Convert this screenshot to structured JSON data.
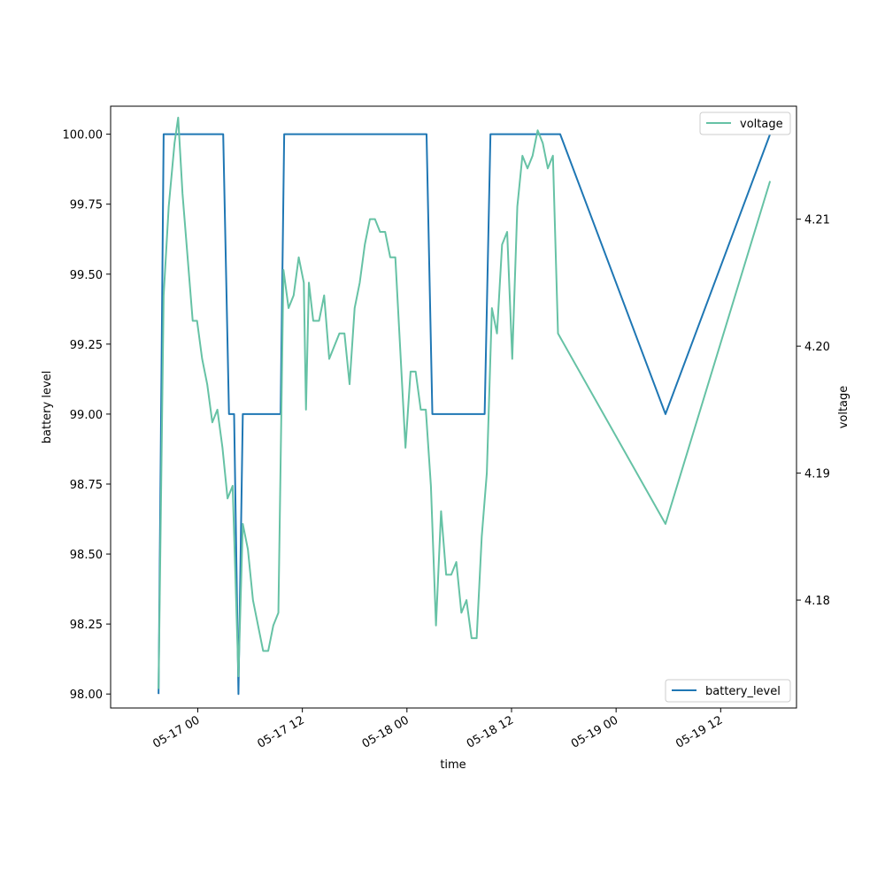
{
  "chart_data": {
    "type": "line",
    "xlabel": "time",
    "ylabel": "battery level",
    "y2label": "voltage",
    "x_ticks": [
      "05-17 00",
      "05-17 12",
      "05-18 00",
      "05-18 12",
      "05-19 00",
      "05-19 12"
    ],
    "y_ticks": [
      "98.00",
      "98.25",
      "98.50",
      "98.75",
      "99.00",
      "99.25",
      "99.50",
      "99.75",
      "100.00"
    ],
    "y2_ticks": [
      "4.18",
      "4.19",
      "4.20",
      "4.21"
    ],
    "ylim": [
      97.95,
      100.1
    ],
    "y2lim": [
      4.1715,
      4.2189
    ],
    "xlim_hours_from_05_17_00": [
      -10.0,
      68.7
    ],
    "legends": {
      "upper": {
        "position": "upper right",
        "entry": "voltage"
      },
      "lower": {
        "position": "lower right",
        "entry": "battery_level"
      }
    },
    "series": [
      {
        "name": "battery_level",
        "axis": "left",
        "color": "#1f77b4",
        "points": [
          [
            "05-16 19:30",
            98.0
          ],
          [
            "05-16 20:05",
            100.0
          ],
          [
            "05-17 02:55",
            100.0
          ],
          [
            "05-17 03:35",
            99.0
          ],
          [
            "05-17 04:10",
            99.0
          ],
          [
            "05-17 04:40",
            98.0
          ],
          [
            "05-17 05:10",
            99.0
          ],
          [
            "05-17 09:30",
            99.0
          ],
          [
            "05-17 09:55",
            100.0
          ],
          [
            "05-18 02:15",
            100.0
          ],
          [
            "05-18 02:55",
            99.0
          ],
          [
            "05-18 08:55",
            99.0
          ],
          [
            "05-18 09:35",
            100.0
          ],
          [
            "05-18 17:35",
            100.0
          ],
          [
            "05-19 05:40",
            99.0
          ],
          [
            "05-19 17:40",
            100.0
          ]
        ]
      },
      {
        "name": "voltage",
        "axis": "right",
        "color": "#66c2a5",
        "points": [
          [
            "05-16 19:30",
            4.173
          ],
          [
            "05-16 20:05",
            4.204
          ],
          [
            "05-16 20:40",
            4.211
          ],
          [
            "05-16 21:20",
            4.216
          ],
          [
            "05-16 21:45",
            4.218
          ],
          [
            "05-16 22:15",
            4.212
          ],
          [
            "05-16 23:25",
            4.202
          ],
          [
            "05-16 23:55",
            4.202
          ],
          [
            "05-17 00:30",
            4.199
          ],
          [
            "05-17 01:05",
            4.197
          ],
          [
            "05-17 01:40",
            4.194
          ],
          [
            "05-17 02:15",
            4.195
          ],
          [
            "05-17 02:50",
            4.192
          ],
          [
            "05-17 03:25",
            4.188
          ],
          [
            "05-17 04:00",
            4.189
          ],
          [
            "05-17 04:40",
            4.174
          ],
          [
            "05-17 05:10",
            4.186
          ],
          [
            "05-17 05:45",
            4.184
          ],
          [
            "05-17 06:20",
            4.18
          ],
          [
            "05-17 07:30",
            4.176
          ],
          [
            "05-17 08:05",
            4.176
          ],
          [
            "05-17 08:40",
            4.178
          ],
          [
            "05-17 09:15",
            4.179
          ],
          [
            "05-17 09:50",
            4.206
          ],
          [
            "05-17 10:25",
            4.203
          ],
          [
            "05-17 11:00",
            4.204
          ],
          [
            "05-17 11:35",
            4.207
          ],
          [
            "05-17 12:10",
            4.205
          ],
          [
            "05-17 12:25",
            4.195
          ],
          [
            "05-17 12:45",
            4.205
          ],
          [
            "05-17 13:15",
            4.202
          ],
          [
            "05-17 13:55",
            4.202
          ],
          [
            "05-17 14:30",
            4.204
          ],
          [
            "05-17 15:05",
            4.199
          ],
          [
            "05-17 15:40",
            4.2
          ],
          [
            "05-17 16:15",
            4.201
          ],
          [
            "05-17 16:50",
            4.201
          ],
          [
            "05-17 17:25",
            4.197
          ],
          [
            "05-17 18:00",
            4.203
          ],
          [
            "05-17 18:35",
            4.205
          ],
          [
            "05-17 19:10",
            4.208
          ],
          [
            "05-17 19:45",
            4.21
          ],
          [
            "05-17 20:20",
            4.21
          ],
          [
            "05-17 20:55",
            4.209
          ],
          [
            "05-17 21:30",
            4.209
          ],
          [
            "05-17 22:05",
            4.207
          ],
          [
            "05-17 22:40",
            4.207
          ],
          [
            "05-17 23:50",
            4.192
          ],
          [
            "05-18 00:25",
            4.198
          ],
          [
            "05-18 01:00",
            4.198
          ],
          [
            "05-18 01:35",
            4.195
          ],
          [
            "05-18 02:10",
            4.195
          ],
          [
            "05-18 02:45",
            4.189
          ],
          [
            "05-18 03:20",
            4.178
          ],
          [
            "05-18 03:55",
            4.187
          ],
          [
            "05-18 04:30",
            4.182
          ],
          [
            "05-18 05:05",
            4.182
          ],
          [
            "05-18 05:40",
            4.183
          ],
          [
            "05-18 06:15",
            4.179
          ],
          [
            "05-18 06:50",
            4.18
          ],
          [
            "05-18 07:25",
            4.177
          ],
          [
            "05-18 08:00",
            4.177
          ],
          [
            "05-18 08:35",
            4.185
          ],
          [
            "05-18 09:10",
            4.19
          ],
          [
            "05-18 09:45",
            4.203
          ],
          [
            "05-18 10:20",
            4.201
          ],
          [
            "05-18 10:55",
            4.208
          ],
          [
            "05-18 11:30",
            4.209
          ],
          [
            "05-18 12:05",
            4.199
          ],
          [
            "05-18 12:40",
            4.211
          ],
          [
            "05-18 13:15",
            4.215
          ],
          [
            "05-18 13:50",
            4.214
          ],
          [
            "05-18 14:25",
            4.215
          ],
          [
            "05-18 15:00",
            4.217
          ],
          [
            "05-18 15:35",
            4.216
          ],
          [
            "05-18 16:10",
            4.214
          ],
          [
            "05-18 16:45",
            4.215
          ],
          [
            "05-18 17:20",
            4.201
          ],
          [
            "05-19 05:40",
            4.186
          ],
          [
            "05-19 17:40",
            4.213
          ]
        ]
      }
    ]
  }
}
